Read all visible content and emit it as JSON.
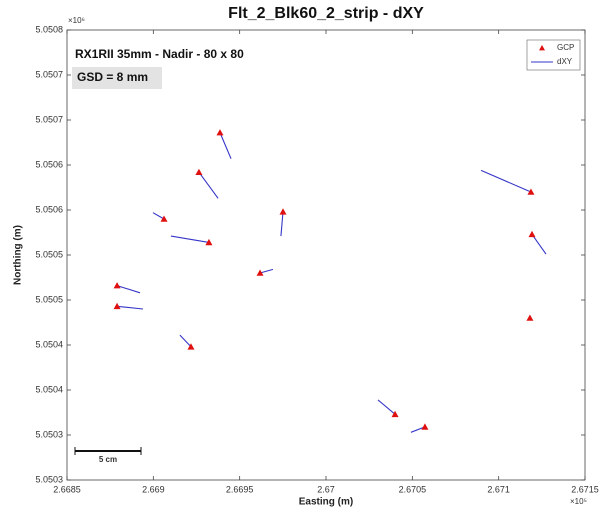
{
  "chart_data": {
    "type": "scatter",
    "title": "Flt_2_Blk60_2_strip - dXY",
    "x_label": "Easting (m)",
    "y_label": "Northing (m)",
    "x_multiplier": "×10⁵",
    "y_multiplier": "×10⁶",
    "annotations": [
      "RX1RII 35mm - Nadir - 80 x 80",
      "GSD =  8 mm"
    ],
    "scale_bar_label": "5 cm",
    "xlim": [
      2.6685,
      2.6715
    ],
    "xticks": [
      2.6685,
      2.669,
      2.6695,
      2.67,
      2.6705,
      2.671,
      2.6715
    ],
    "ylim": [
      5.0503,
      5.0508
    ],
    "yticks": [
      5.0503,
      {
        "value": 5.05035,
        "label": "5.0503"
      },
      5.0504,
      {
        "value": 5.05045,
        "label": "5.0504"
      },
      5.0505,
      {
        "value": 5.05055,
        "label": "5.0505"
      },
      5.0506,
      {
        "value": 5.05065,
        "label": "5.0506"
      },
      5.0507,
      {
        "value": 5.05075,
        "label": "5.0507"
      },
      5.0508
    ],
    "legend": "upper right",
    "series": [
      {
        "name": "GCP",
        "color": "#e01010",
        "x": [
          2.669386,
          2.669264,
          2.669062,
          2.669751,
          2.669322,
          2.66879,
          2.66879,
          2.669218,
          2.669618,
          2.671187,
          2.671193,
          2.671181,
          2.6704,
          2.670573
        ],
        "y": [
          5.050686,
          5.050642,
          5.05059,
          5.050598,
          5.050564,
          5.050516,
          5.050493,
          5.050448,
          5.05053,
          5.05062,
          5.050573,
          5.05048,
          5.050373,
          5.050359
        ]
      },
      {
        "name": "dXY",
        "color": "#3535c8",
        "x": [
          2.66945,
          2.669375,
          2.668998,
          2.669739,
          2.669102,
          2.668923,
          2.66894,
          2.669154,
          2.669693,
          2.670898,
          2.671274,
          null,
          2.670301,
          2.670492
        ],
        "y": [
          5.050657,
          5.050613,
          5.050597,
          5.050571,
          5.050571,
          5.050508,
          5.05049,
          5.050461,
          5.050534,
          5.050644,
          5.050551,
          null,
          5.050389,
          5.050353
        ]
      }
    ]
  }
}
